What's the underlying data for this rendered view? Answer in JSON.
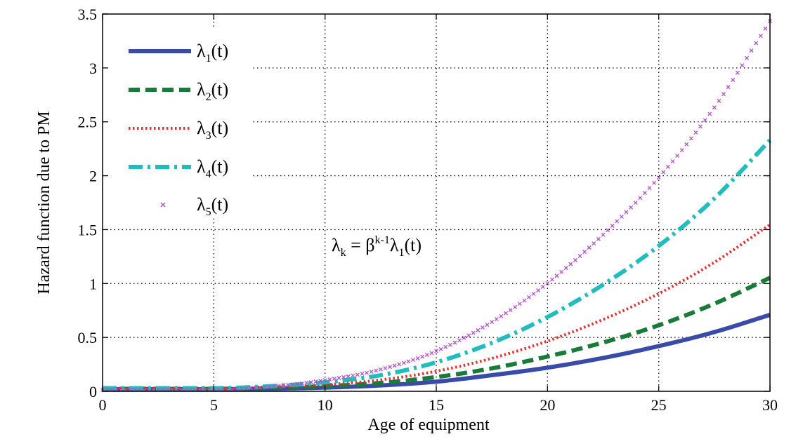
{
  "chart_data": {
    "type": "line",
    "xlabel": "Age of equipment",
    "ylabel": "Hazard function due to PM",
    "xlim": [
      0,
      30
    ],
    "ylim": [
      0,
      3.5
    ],
    "x_ticks": [
      0,
      5,
      10,
      15,
      20,
      25,
      30
    ],
    "y_ticks": [
      0,
      0.5,
      1,
      1.5,
      2,
      2.5,
      3,
      3.5
    ],
    "x_tick_labels": [
      "0",
      "5",
      "10",
      "15",
      "20",
      "25",
      "30"
    ],
    "y_tick_labels": [
      "0",
      "0.5",
      "1",
      "1.5",
      "2",
      "2.5",
      "3",
      "3.5"
    ],
    "grid": true,
    "legend_position": "top-left",
    "x": [
      0,
      2.5,
      5,
      7.5,
      10,
      12.5,
      15,
      17.5,
      20,
      22.5,
      25,
      27.5,
      30
    ],
    "series": [
      {
        "name": "λ",
        "sub": "1",
        "suffix": "(t)",
        "color": "#3a4aa8",
        "style": "solid",
        "values": [
          0.0,
          0.0,
          0.0,
          0.005,
          0.015,
          0.035,
          0.07,
          0.13,
          0.2,
          0.29,
          0.4,
          0.53,
          0.69
        ]
      },
      {
        "name": "λ",
        "sub": "2",
        "suffix": "(t)",
        "color": "#1a7a3a",
        "style": "dashed",
        "values": [
          0.0,
          0.0,
          0.0,
          0.008,
          0.025,
          0.055,
          0.11,
          0.19,
          0.3,
          0.43,
          0.59,
          0.79,
          1.03
        ]
      },
      {
        "name": "λ",
        "sub": "3",
        "suffix": "(t)",
        "color": "#e23030",
        "style": "dotted",
        "values": [
          0.0,
          0.0,
          0.0,
          0.012,
          0.035,
          0.08,
          0.16,
          0.28,
          0.44,
          0.64,
          0.88,
          1.17,
          1.52
        ]
      },
      {
        "name": "λ",
        "sub": "4",
        "suffix": "(t)",
        "color": "#22bcbc",
        "style": "dashdot",
        "values": [
          0.0,
          0.0,
          0.0,
          0.018,
          0.055,
          0.12,
          0.24,
          0.42,
          0.66,
          0.96,
          1.32,
          1.76,
          2.3
        ]
      },
      {
        "name": "λ",
        "sub": "5",
        "suffix": "(t)",
        "color": "#b050c8",
        "style": "markers",
        "values": [
          0.0,
          0.0,
          0.0,
          0.03,
          0.09,
          0.19,
          0.36,
          0.63,
          0.99,
          1.44,
          1.97,
          2.62,
          3.42
        ]
      }
    ],
    "annotation": {
      "prefix": "λ",
      "prefix_sub": "k",
      "mid": " = β",
      "mid_sup": "k-1",
      "mid2": "λ",
      "mid2_sub": "1",
      "suffix": "(t)"
    }
  }
}
